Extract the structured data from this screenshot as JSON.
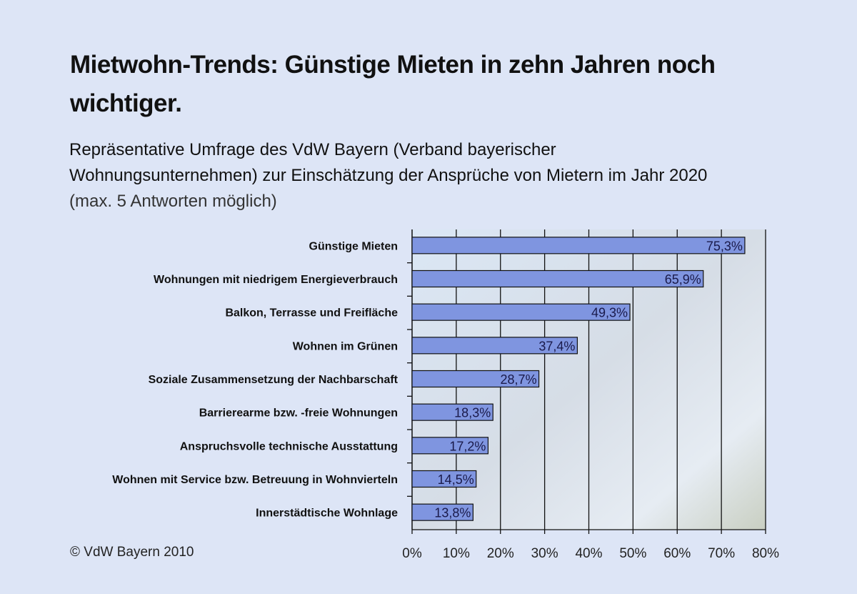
{
  "chart_data": {
    "type": "bar",
    "orientation": "horizontal",
    "title": "Mietwohn-Trends: Günstige Mieten in zehn Jahren noch wichtiger.",
    "subtitle": "Repräsentative Umfrage des VdW Bayern (Verband bayerischer Wohnungsunternehmen) zur Einschätzung der Ansprüche von Mietern im Jahr 2020",
    "subtitle_note": "(max. 5 Antworten möglich)",
    "categories": [
      "Günstige Mieten",
      "Wohnungen mit niedrigem Energieverbrauch",
      "Balkon, Terrasse und Freifläche",
      "Wohnen im Grünen",
      "Soziale Zusammensetzung der Nachbarschaft",
      "Barrierearme bzw. -freie Wohnungen",
      "Anspruchsvolle technische Ausstattung",
      "Wohnen mit Service bzw. Betreuung in Wohnvierteln",
      "Innerstädtische Wohnlage"
    ],
    "values": [
      75.3,
      65.9,
      49.3,
      37.4,
      28.7,
      18.3,
      17.2,
      14.5,
      13.8
    ],
    "data_labels": [
      "75,3%",
      "65,9%",
      "49,3%",
      "37,4%",
      "28,7%",
      "18,3%",
      "17,2%",
      "14,5%",
      "13,8%"
    ],
    "xlim": [
      0,
      80
    ],
    "x_ticks": [
      "0%",
      "10%",
      "20%",
      "30%",
      "40%",
      "50%",
      "60%",
      "70%",
      "80%"
    ],
    "grid": true,
    "bar_color": "#7f95e0",
    "background_color": "#dde5f6"
  },
  "footer": {
    "copyright": "© VdW Bayern 2010"
  }
}
